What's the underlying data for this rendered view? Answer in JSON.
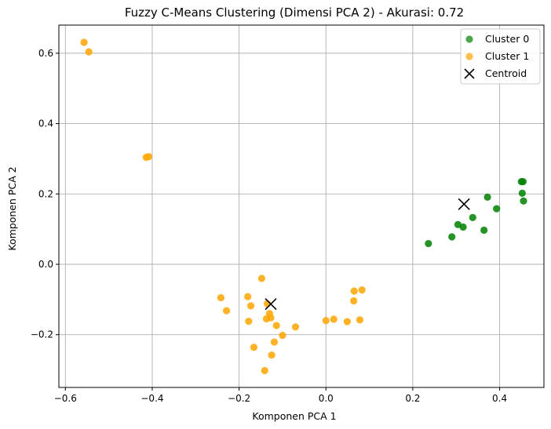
{
  "chart_data": {
    "type": "scatter",
    "title": "Fuzzy C-Means Clustering (Dimensi PCA 2) - Akurasi: 0.72",
    "xlabel": "Komponen PCA 1",
    "ylabel": "Komponen PCA 2",
    "xlim": [
      -0.615,
      0.502
    ],
    "ylim": [
      -0.35,
      0.68
    ],
    "xticks": [
      -0.6,
      -0.4,
      -0.2,
      0.0,
      0.2,
      0.4
    ],
    "xtick_labels": [
      "−0.6",
      "−0.4",
      "−0.2",
      "0.0",
      "0.2",
      "0.4"
    ],
    "yticks": [
      -0.2,
      0.0,
      0.2,
      0.4,
      0.6
    ],
    "ytick_labels": [
      "−0.2",
      "0.0",
      "0.2",
      "0.4",
      "0.6"
    ],
    "grid": true,
    "legend_position": "top-right",
    "series": [
      {
        "name": "Cluster 0",
        "color": "#008000",
        "marker": "circle",
        "points": [
          [
            0.236,
            0.059
          ],
          [
            0.29,
            0.078
          ],
          [
            0.304,
            0.113
          ],
          [
            0.316,
            0.106
          ],
          [
            0.338,
            0.133
          ],
          [
            0.364,
            0.097
          ],
          [
            0.372,
            0.191
          ],
          [
            0.393,
            0.158
          ],
          [
            0.45,
            0.235
          ],
          [
            0.454,
            0.235
          ],
          [
            0.452,
            0.202
          ],
          [
            0.455,
            0.18
          ]
        ]
      },
      {
        "name": "Cluster 1",
        "color": "#ffa500",
        "marker": "circle",
        "points": [
          [
            -0.557,
            0.631
          ],
          [
            -0.546,
            0.604
          ],
          [
            -0.414,
            0.304
          ],
          [
            -0.408,
            0.306
          ],
          [
            -0.242,
            -0.095
          ],
          [
            -0.229,
            -0.132
          ],
          [
            -0.18,
            -0.092
          ],
          [
            -0.178,
            -0.162
          ],
          [
            -0.173,
            -0.118
          ],
          [
            -0.166,
            -0.236
          ],
          [
            -0.148,
            -0.04
          ],
          [
            -0.141,
            -0.302
          ],
          [
            -0.137,
            -0.155
          ],
          [
            -0.135,
            -0.112
          ],
          [
            -0.13,
            -0.14
          ],
          [
            -0.127,
            -0.152
          ],
          [
            -0.125,
            -0.258
          ],
          [
            -0.119,
            -0.221
          ],
          [
            -0.114,
            -0.174
          ],
          [
            -0.1,
            -0.202
          ],
          [
            -0.07,
            -0.178
          ],
          [
            0.0,
            -0.16
          ],
          [
            0.018,
            -0.156
          ],
          [
            0.049,
            -0.163
          ],
          [
            0.064,
            -0.104
          ],
          [
            0.065,
            -0.076
          ],
          [
            0.078,
            -0.158
          ],
          [
            0.083,
            -0.073
          ]
        ]
      },
      {
        "name": "Centroid",
        "color": "#000000",
        "marker": "x",
        "points": [
          [
            -0.127,
            -0.113
          ],
          [
            0.318,
            0.171
          ]
        ]
      }
    ]
  }
}
